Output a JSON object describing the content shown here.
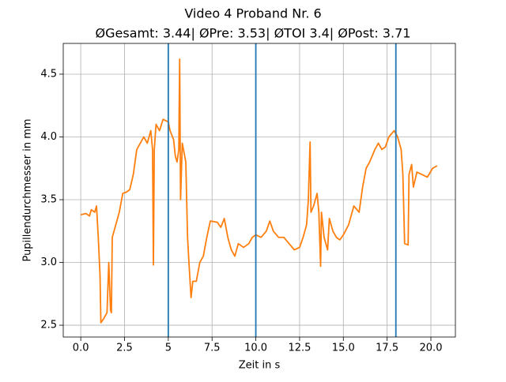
{
  "chart_data": {
    "type": "line",
    "title": "Video 4 Proband Nr. 6",
    "subtitle": "ØGesamt: 3.44| ØPre: 3.53| ØTOI 3.4| ØPost: 3.71",
    "x_label": "Zeit in s",
    "y_label": "Pupillendurchmesser in mm",
    "x": [
      0,
      0.3,
      0.5,
      0.6,
      0.8,
      0.9,
      1.0,
      1.1,
      1.15,
      1.3,
      1.5,
      1.6,
      1.7,
      1.75,
      1.8,
      2.0,
      2.2,
      2.4,
      2.6,
      2.8,
      3.0,
      3.2,
      3.4,
      3.6,
      3.8,
      4.0,
      4.1,
      4.15,
      4.2,
      4.3,
      4.5,
      4.7,
      5.0,
      5.1,
      5.3,
      5.4,
      5.5,
      5.6,
      5.65,
      5.7,
      5.8,
      6.0,
      6.1,
      6.2,
      6.3,
      6.4,
      6.6,
      6.8,
      7.0,
      7.2,
      7.4,
      7.8,
      8.0,
      8.2,
      8.4,
      8.6,
      8.8,
      9.0,
      9.3,
      9.6,
      9.8,
      10.0,
      10.3,
      10.6,
      10.8,
      11.0,
      11.3,
      11.6,
      11.9,
      12.2,
      12.5,
      12.7,
      12.9,
      13.0,
      13.1,
      13.15,
      13.3,
      13.5,
      13.6,
      13.7,
      13.75,
      13.9,
      14.1,
      14.2,
      14.4,
      14.6,
      14.8,
      15.0,
      15.3,
      15.6,
      15.9,
      16.1,
      16.3,
      16.5,
      16.8,
      17.0,
      17.2,
      17.4,
      17.6,
      17.9,
      18.1,
      18.3,
      18.4,
      18.5,
      18.7,
      18.75,
      18.9,
      19.0,
      19.2,
      19.5,
      19.8,
      20.1,
      20.35
    ],
    "series": [
      {
        "color": "#ff7f0e",
        "values": [
          3.38,
          3.39,
          3.37,
          3.42,
          3.4,
          3.45,
          3.2,
          2.9,
          2.52,
          2.55,
          2.6,
          3.0,
          2.62,
          2.6,
          3.2,
          3.3,
          3.4,
          3.55,
          3.56,
          3.58,
          3.7,
          3.9,
          3.95,
          4.0,
          3.95,
          4.05,
          3.9,
          2.98,
          3.9,
          4.1,
          4.05,
          4.14,
          4.12,
          4.05,
          3.98,
          3.85,
          3.8,
          3.9,
          4.62,
          3.5,
          3.95,
          3.8,
          3.2,
          2.95,
          2.72,
          2.85,
          2.85,
          3.0,
          3.05,
          3.2,
          3.33,
          3.32,
          3.28,
          3.35,
          3.2,
          3.1,
          3.05,
          3.15,
          3.12,
          3.15,
          3.2,
          3.22,
          3.2,
          3.25,
          3.33,
          3.25,
          3.2,
          3.2,
          3.15,
          3.1,
          3.12,
          3.2,
          3.3,
          3.5,
          3.96,
          3.4,
          3.45,
          3.55,
          3.4,
          2.97,
          3.4,
          3.2,
          3.1,
          3.35,
          3.25,
          3.2,
          3.18,
          3.22,
          3.3,
          3.45,
          3.4,
          3.6,
          3.75,
          3.8,
          3.9,
          3.95,
          3.9,
          3.92,
          4.0,
          4.05,
          4.0,
          3.9,
          3.7,
          3.15,
          3.14,
          3.7,
          3.78,
          3.6,
          3.72,
          3.7,
          3.68,
          3.75,
          3.77
        ]
      }
    ],
    "vlines": [
      5,
      10,
      18
    ],
    "vline_color": "#1f77b4",
    "xlim": [
      -1.0,
      21.4
    ],
    "ylim": [
      2.406,
      4.745
    ],
    "xticks": [
      {
        "value": 0,
        "label": "0.0"
      },
      2.5,
      5,
      7.5,
      {
        "value": 10,
        "label": "10.0"
      },
      12.5,
      {
        "value": 15,
        "label": "15.0"
      },
      17.5,
      {
        "value": 20,
        "label": "20.0"
      }
    ],
    "yticks": [
      2.5,
      {
        "value": 3,
        "label": "3.0"
      },
      3.5,
      {
        "value": 4,
        "label": "4.0"
      },
      4.5
    ],
    "grid": true
  }
}
